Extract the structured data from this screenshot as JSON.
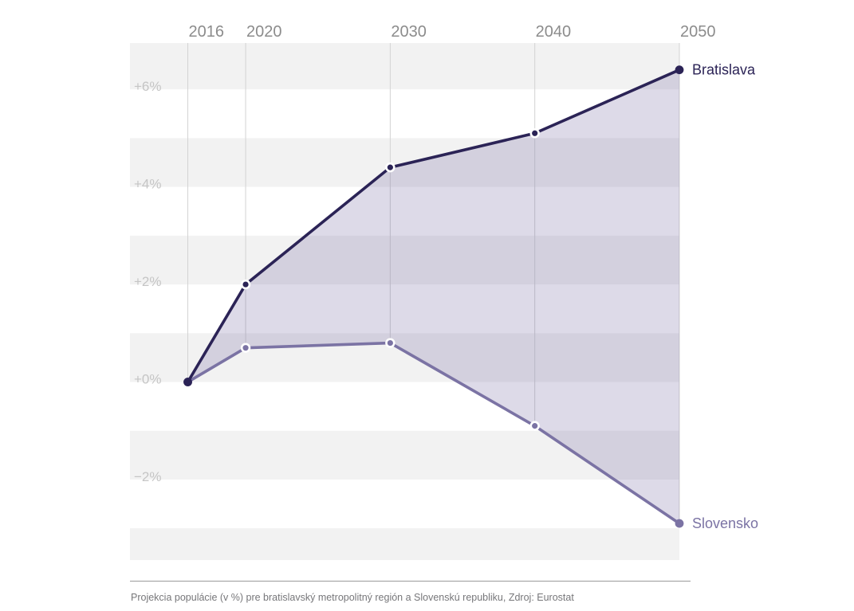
{
  "chart_data": {
    "type": "line",
    "x": [
      2016,
      2020,
      2030,
      2040,
      2050
    ],
    "x_tick_labels": [
      "2016",
      "2020",
      "2030",
      "2040",
      "2050"
    ],
    "series": [
      {
        "name": "Bratislava",
        "color": "#2b2356",
        "values": [
          0.0,
          2.0,
          4.4,
          5.1,
          6.4
        ]
      },
      {
        "name": "Slovensko",
        "color": "#7b73a4",
        "values": [
          0.0,
          0.7,
          0.8,
          -0.9,
          -2.9
        ]
      }
    ],
    "y_ticks": [
      {
        "value": 6,
        "label": "+6%"
      },
      {
        "value": 4,
        "label": "+4%"
      },
      {
        "value": 2,
        "label": "+2%"
      },
      {
        "value": 0,
        "label": "+0%"
      },
      {
        "value": -2,
        "label": "−2%"
      }
    ],
    "ylim": [
      -3.65,
      6.95
    ],
    "xlim": [
      2012,
      2050
    ],
    "title": "",
    "xlabel": "",
    "ylabel": "",
    "grid": "vertical-tick-lines-ending-at-lower-series",
    "area_between_series": true,
    "legend_position": "line-end-labels",
    "colors": {
      "background": "#ffffff",
      "band": "#f2f2f2",
      "gridline": "#d3d3d3",
      "area_fill": "rgba(99,88,152,0.22)",
      "x_tick_label": "#8c8c8c",
      "y_tick_label": "#c5c5c5"
    }
  },
  "caption": {
    "text": "Projekcia populácie (v %) pre bratislavský metropolitný región a Slovenskú republiku, Zdroj: Eurostat"
  }
}
